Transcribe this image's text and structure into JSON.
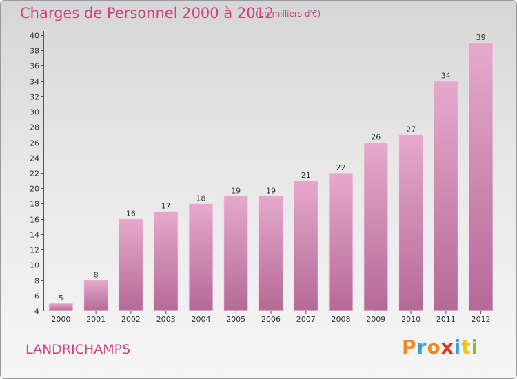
{
  "header": {
    "title": "Charges de Personnel 2000 à 2012",
    "subtitle": "(en milliers d'€)"
  },
  "footer": {
    "place": "LANDRICHAMPS",
    "brand": [
      "P",
      "r",
      "o",
      "x",
      "i",
      "t",
      "i"
    ]
  },
  "colors": {
    "title": "#d1417a",
    "bar_top": "#e6a9cc",
    "bar_bottom": "#b56a96",
    "brand_letters": [
      "#f08a1c",
      "#3aa0dc",
      "#f08a1c",
      "#e0342c",
      "#3aa0dc",
      "#f0c21c",
      "#7cc04a"
    ]
  },
  "chart_data": {
    "type": "bar",
    "categories": [
      "2000",
      "2001",
      "2002",
      "2003",
      "2004",
      "2005",
      "2006",
      "2007",
      "2008",
      "2009",
      "2010",
      "2011",
      "2012"
    ],
    "values": [
      5,
      8,
      16,
      17,
      18,
      19,
      19,
      21,
      22,
      26,
      27,
      34,
      39
    ],
    "ylim": [
      4,
      40
    ],
    "yticks": [
      4,
      6,
      8,
      10,
      12,
      14,
      16,
      18,
      20,
      22,
      24,
      26,
      28,
      30,
      32,
      34,
      36,
      38,
      40
    ],
    "grid": false,
    "legend": "none"
  }
}
